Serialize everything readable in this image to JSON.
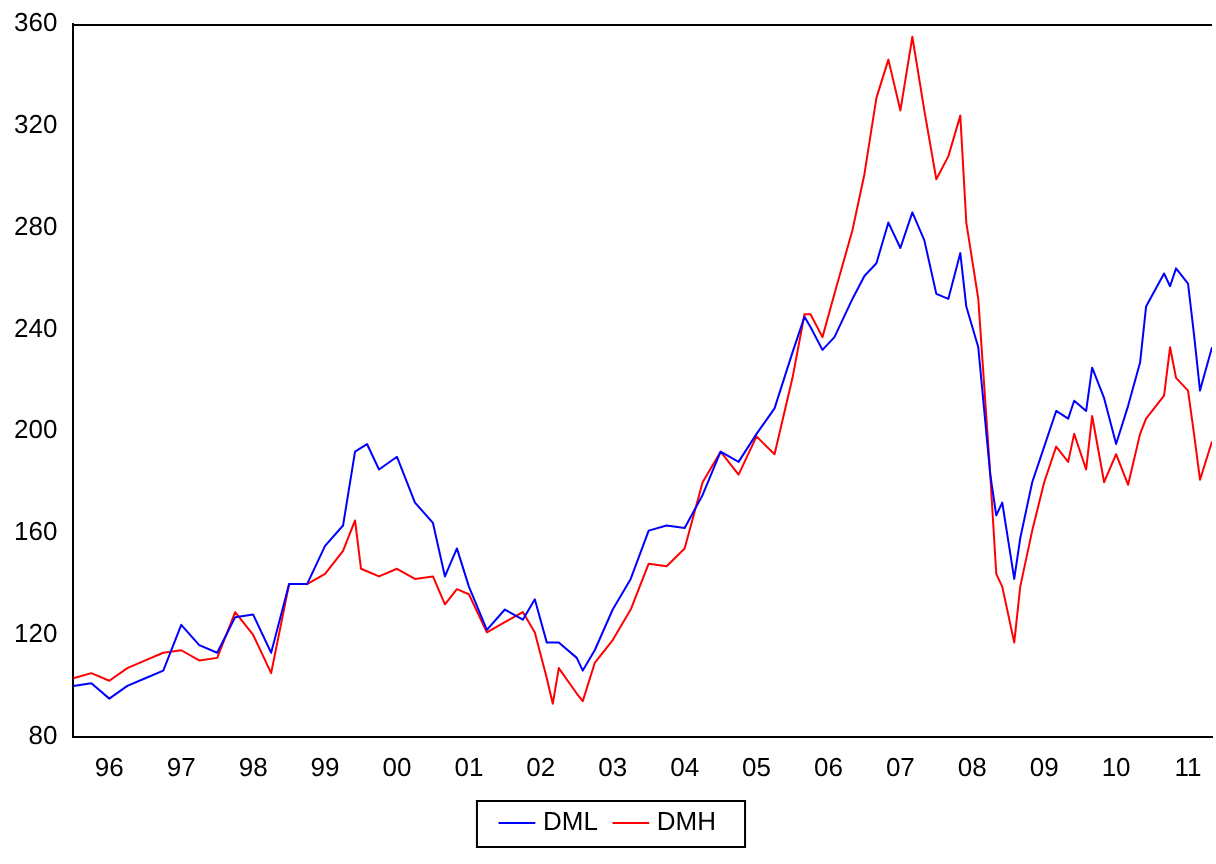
{
  "chart_data": {
    "type": "line",
    "xlim": [
      "1996-01",
      "2011-11"
    ],
    "xticks": [
      {
        "value": "1996-07",
        "label": "96"
      },
      {
        "value": "1997-07",
        "label": "97"
      },
      {
        "value": "1998-07",
        "label": "98"
      },
      {
        "value": "1999-07",
        "label": "99"
      },
      {
        "value": "2000-07",
        "label": "00"
      },
      {
        "value": "2001-07",
        "label": "01"
      },
      {
        "value": "2002-07",
        "label": "02"
      },
      {
        "value": "2003-07",
        "label": "03"
      },
      {
        "value": "2004-07",
        "label": "04"
      },
      {
        "value": "2005-07",
        "label": "05"
      },
      {
        "value": "2006-07",
        "label": "06"
      },
      {
        "value": "2007-07",
        "label": "07"
      },
      {
        "value": "2008-07",
        "label": "08"
      },
      {
        "value": "2009-07",
        "label": "09"
      },
      {
        "value": "2010-07",
        "label": "10"
      },
      {
        "value": "2011-07",
        "label": "11"
      }
    ],
    "ylim": [
      80,
      360
    ],
    "yticks": [
      80,
      120,
      160,
      200,
      240,
      280,
      320,
      360
    ],
    "grid": false,
    "legend": "bottom",
    "marker": "none",
    "line_style": "solid",
    "series": [
      {
        "name": "DML",
        "color": "#0000ff",
        "x": [
          "1996-01",
          "1996-04",
          "1996-07",
          "1996-10",
          "1997-01",
          "1997-04",
          "1997-07",
          "1997-10",
          "1998-01",
          "1998-04",
          "1998-07",
          "1998-10",
          "1999-01",
          "1999-04",
          "1999-07",
          "1999-10",
          "1999-12",
          "2000-02",
          "2000-04",
          "2000-07",
          "2000-10",
          "2001-01",
          "2001-03",
          "2001-05",
          "2001-07",
          "2001-10",
          "2002-01",
          "2002-04",
          "2002-06",
          "2002-08",
          "2002-10",
          "2003-01",
          "2003-02",
          "2003-04",
          "2003-07",
          "2003-10",
          "2004-01",
          "2004-04",
          "2004-07",
          "2004-10",
          "2005-01",
          "2005-04",
          "2005-07",
          "2005-10",
          "2006-01",
          "2006-03",
          "2006-04",
          "2006-06",
          "2006-08",
          "2006-11",
          "2007-01",
          "2007-03",
          "2007-05",
          "2007-07",
          "2007-09",
          "2007-11",
          "2008-01",
          "2008-03",
          "2008-05",
          "2008-06",
          "2008-08",
          "2008-10",
          "2008-11",
          "2008-12",
          "2009-02",
          "2009-03",
          "2009-05",
          "2009-07",
          "2009-09",
          "2009-11",
          "2009-12",
          "2010-02",
          "2010-03",
          "2010-05",
          "2010-07",
          "2010-09",
          "2010-11",
          "2010-12",
          "2011-03",
          "2011-04",
          "2011-05",
          "2011-07",
          "2011-08",
          "2011-09",
          "2011-11"
        ],
        "values": [
          100,
          101,
          95,
          100,
          103,
          106,
          124,
          116,
          113,
          127,
          128,
          113,
          140,
          140,
          155,
          163,
          192,
          195,
          185,
          190,
          172,
          164,
          143,
          154,
          139,
          122,
          130,
          126,
          134,
          117,
          117,
          111,
          106,
          114,
          130,
          142,
          161,
          163,
          162,
          175,
          192,
          188,
          199,
          209,
          231,
          245,
          241,
          232,
          237,
          252,
          261,
          266,
          282,
          272,
          286,
          275,
          254,
          252,
          270,
          249,
          233,
          183,
          167,
          172,
          142,
          158,
          180,
          194,
          208,
          205,
          212,
          208,
          225,
          213,
          195,
          210,
          227,
          249,
          262,
          257,
          264,
          258,
          238,
          216,
          233
        ]
      },
      {
        "name": "DMH",
        "color": "#ff0000",
        "x": [
          "1996-01",
          "1996-04",
          "1996-07",
          "1996-10",
          "1997-01",
          "1997-04",
          "1997-07",
          "1997-10",
          "1998-01",
          "1998-04",
          "1998-07",
          "1998-10",
          "1999-01",
          "1999-04",
          "1999-07",
          "1999-10",
          "1999-12",
          "2000-01",
          "2000-04",
          "2000-07",
          "2000-10",
          "2001-01",
          "2001-03",
          "2001-05",
          "2001-07",
          "2001-10",
          "2002-01",
          "2002-04",
          "2002-06",
          "2002-08",
          "2002-09",
          "2002-10",
          "2003-01",
          "2003-02",
          "2003-04",
          "2003-07",
          "2003-10",
          "2004-01",
          "2004-04",
          "2004-07",
          "2004-10",
          "2005-01",
          "2005-04",
          "2005-07",
          "2005-10",
          "2006-01",
          "2006-03",
          "2006-04",
          "2006-06",
          "2006-08",
          "2006-11",
          "2007-01",
          "2007-03",
          "2007-05",
          "2007-07",
          "2007-09",
          "2007-11",
          "2008-01",
          "2008-03",
          "2008-05",
          "2008-06",
          "2008-08",
          "2008-10",
          "2008-11",
          "2008-12",
          "2009-02",
          "2009-03",
          "2009-05",
          "2009-07",
          "2009-09",
          "2009-11",
          "2009-12",
          "2010-02",
          "2010-03",
          "2010-05",
          "2010-07",
          "2010-09",
          "2010-11",
          "2010-12",
          "2011-03",
          "2011-04",
          "2011-05",
          "2011-07",
          "2011-08",
          "2011-09",
          "2011-11"
        ],
        "values": [
          103,
          105,
          102,
          107,
          110,
          113,
          114,
          110,
          111,
          129,
          120,
          105,
          140,
          140,
          144,
          153,
          165,
          146,
          143,
          146,
          142,
          143,
          132,
          138,
          136,
          121,
          125,
          129,
          121,
          103,
          93,
          107,
          97,
          94,
          109,
          118,
          130,
          148,
          147,
          154,
          180,
          192,
          183,
          198,
          191,
          221,
          246,
          246,
          237,
          254,
          279,
          301,
          331,
          346,
          326,
          355,
          326,
          299,
          308,
          324,
          282,
          252,
          183,
          144,
          139,
          117,
          139,
          161,
          180,
          194,
          188,
          199,
          185,
          206,
          180,
          191,
          179,
          199,
          205,
          214,
          233,
          221,
          216,
          199,
          181,
          196
        ]
      }
    ]
  }
}
